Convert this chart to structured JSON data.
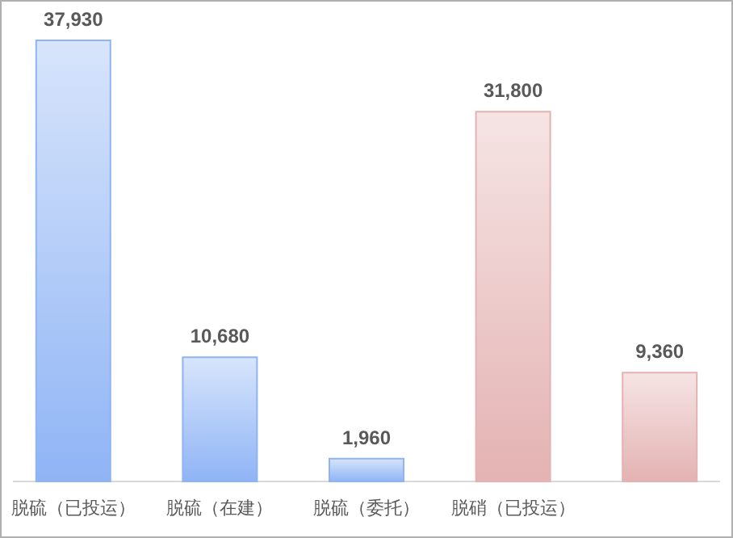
{
  "chart_data": {
    "type": "bar",
    "categories": [
      "脱硫（已投运）",
      "脱硫（在建）",
      "脱硫（委托）",
      "脱硝（已投运）",
      null
    ],
    "values": [
      37930,
      10680,
      1960,
      31800,
      9360
    ],
    "value_labels": [
      "37,930",
      "10,680",
      "1,960",
      "31,800",
      "9,360"
    ],
    "colors": [
      "#8fb4f5",
      "#8fb4f5",
      "#8fb4f5",
      "#e4b2b2",
      "#e4b2b2"
    ]
  }
}
